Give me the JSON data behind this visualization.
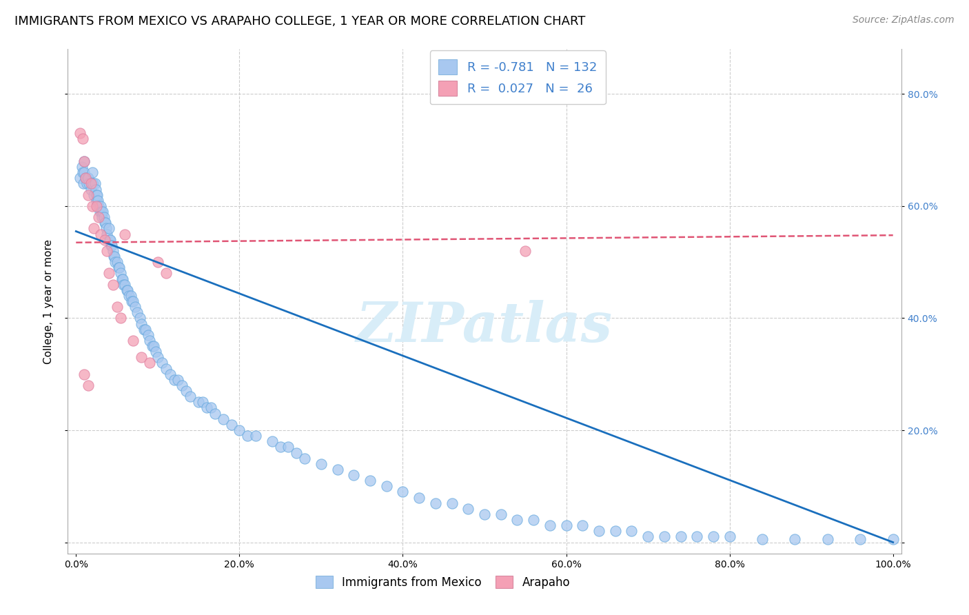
{
  "title": "IMMIGRANTS FROM MEXICO VS ARAPAHO COLLEGE, 1 YEAR OR MORE CORRELATION CHART",
  "source": "Source: ZipAtlas.com",
  "ylabel": "College, 1 year or more",
  "x_tick_labels": [
    "0.0%",
    "20.0%",
    "40.0%",
    "60.0%",
    "80.0%",
    "100.0%"
  ],
  "x_tick_values": [
    0.0,
    0.2,
    0.4,
    0.6,
    0.8,
    1.0
  ],
  "y_tick_values": [
    0.0,
    0.2,
    0.4,
    0.6,
    0.8
  ],
  "y_tick_labels_right": [
    "",
    "20.0%",
    "40.0%",
    "60.0%",
    "80.0%"
  ],
  "xlim": [
    -0.01,
    1.01
  ],
  "ylim": [
    -0.02,
    0.88
  ],
  "blue_scatter_x": [
    0.005,
    0.007,
    0.008,
    0.009,
    0.01,
    0.01,
    0.012,
    0.013,
    0.014,
    0.015,
    0.016,
    0.018,
    0.02,
    0.02,
    0.021,
    0.022,
    0.023,
    0.024,
    0.025,
    0.025,
    0.026,
    0.027,
    0.028,
    0.029,
    0.03,
    0.031,
    0.032,
    0.033,
    0.034,
    0.035,
    0.036,
    0.037,
    0.038,
    0.04,
    0.041,
    0.042,
    0.043,
    0.044,
    0.045,
    0.046,
    0.047,
    0.048,
    0.05,
    0.052,
    0.053,
    0.055,
    0.056,
    0.057,
    0.058,
    0.06,
    0.062,
    0.063,
    0.065,
    0.067,
    0.068,
    0.07,
    0.072,
    0.075,
    0.078,
    0.08,
    0.083,
    0.085,
    0.088,
    0.09,
    0.093,
    0.095,
    0.098,
    0.1,
    0.105,
    0.11,
    0.115,
    0.12,
    0.125,
    0.13,
    0.135,
    0.14,
    0.15,
    0.155,
    0.16,
    0.165,
    0.17,
    0.18,
    0.19,
    0.2,
    0.21,
    0.22,
    0.24,
    0.25,
    0.26,
    0.27,
    0.28,
    0.3,
    0.32,
    0.34,
    0.36,
    0.38,
    0.4,
    0.42,
    0.44,
    0.46,
    0.48,
    0.5,
    0.52,
    0.54,
    0.56,
    0.58,
    0.6,
    0.62,
    0.64,
    0.66,
    0.68,
    0.7,
    0.72,
    0.74,
    0.76,
    0.78,
    0.8,
    0.84,
    0.88,
    0.92,
    0.96,
    1.0
  ],
  "blue_scatter_y": [
    0.65,
    0.67,
    0.66,
    0.64,
    0.68,
    0.66,
    0.65,
    0.64,
    0.65,
    0.65,
    0.64,
    0.63,
    0.66,
    0.64,
    0.64,
    0.62,
    0.64,
    0.63,
    0.62,
    0.61,
    0.62,
    0.61,
    0.6,
    0.59,
    0.6,
    0.59,
    0.58,
    0.59,
    0.58,
    0.57,
    0.57,
    0.56,
    0.55,
    0.56,
    0.54,
    0.54,
    0.53,
    0.53,
    0.52,
    0.51,
    0.51,
    0.5,
    0.5,
    0.49,
    0.49,
    0.48,
    0.47,
    0.47,
    0.46,
    0.46,
    0.45,
    0.45,
    0.44,
    0.44,
    0.43,
    0.43,
    0.42,
    0.41,
    0.4,
    0.39,
    0.38,
    0.38,
    0.37,
    0.36,
    0.35,
    0.35,
    0.34,
    0.33,
    0.32,
    0.31,
    0.3,
    0.29,
    0.29,
    0.28,
    0.27,
    0.26,
    0.25,
    0.25,
    0.24,
    0.24,
    0.23,
    0.22,
    0.21,
    0.2,
    0.19,
    0.19,
    0.18,
    0.17,
    0.17,
    0.16,
    0.15,
    0.14,
    0.13,
    0.12,
    0.11,
    0.1,
    0.09,
    0.08,
    0.07,
    0.07,
    0.06,
    0.05,
    0.05,
    0.04,
    0.04,
    0.03,
    0.03,
    0.03,
    0.02,
    0.02,
    0.02,
    0.01,
    0.01,
    0.01,
    0.01,
    0.01,
    0.01,
    0.005,
    0.005,
    0.005,
    0.005,
    0.005
  ],
  "pink_scatter_x": [
    0.005,
    0.008,
    0.01,
    0.012,
    0.015,
    0.018,
    0.02,
    0.022,
    0.025,
    0.028,
    0.03,
    0.035,
    0.038,
    0.04,
    0.045,
    0.05,
    0.055,
    0.06,
    0.07,
    0.08,
    0.09,
    0.1,
    0.11,
    0.55,
    0.01,
    0.015
  ],
  "pink_scatter_y": [
    0.73,
    0.72,
    0.68,
    0.65,
    0.62,
    0.64,
    0.6,
    0.56,
    0.6,
    0.58,
    0.55,
    0.54,
    0.52,
    0.48,
    0.46,
    0.42,
    0.4,
    0.55,
    0.36,
    0.33,
    0.32,
    0.5,
    0.48,
    0.52,
    0.3,
    0.28
  ],
  "blue_line_x": [
    0.0,
    1.0
  ],
  "blue_line_y_start": 0.555,
  "blue_line_y_end": 0.0,
  "pink_line_x": [
    0.0,
    1.0
  ],
  "pink_line_y_start": 0.535,
  "pink_line_y_end": 0.548,
  "blue_scatter_color": "#a8c8f0",
  "pink_scatter_color": "#f4a0b5",
  "blue_line_color": "#1a6fbd",
  "pink_line_color": "#e05575",
  "grid_color": "#cccccc",
  "background_color": "#ffffff",
  "watermark": "ZIPatlas",
  "watermark_color": "#d8edf8",
  "legend_text_color": "#4080cc",
  "title_fontsize": 13,
  "axis_label_fontsize": 11,
  "tick_fontsize": 10,
  "source_fontsize": 10
}
